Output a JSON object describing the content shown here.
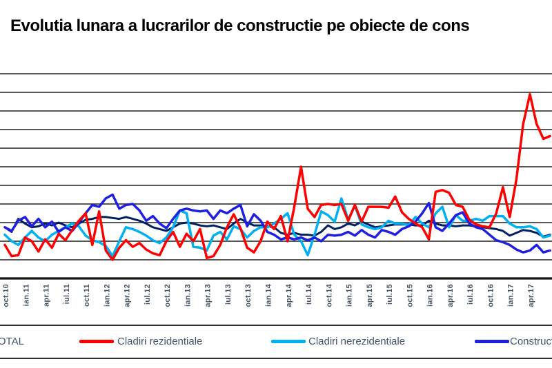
{
  "title": "Evolutia lunara a lucrarilor de constructie pe obiecte de cons",
  "legend": {
    "items": [
      {
        "label": "TOTAL",
        "color": "#002060"
      },
      {
        "label": "Cladiri rezidentiale",
        "color": "#FE0000"
      },
      {
        "label": "Cladiri nerezidentiale",
        "color": "#00B0F0"
      },
      {
        "label": "Constructii ingineresti",
        "color": "#1F1FE0"
      }
    ]
  },
  "chart_data": {
    "type": "line",
    "x_frequency": "monthly",
    "x_start": "oct.10",
    "x_end": "iul.17",
    "x_tick_every": 3,
    "x_tick_labels": [
      "oct.10",
      "ian.11",
      "apr.11",
      "iul.11",
      "oct.11",
      "ian.12",
      "apr.12",
      "iul.12",
      "oct.12",
      "ian.13",
      "apr.13",
      "iul.13",
      "oct.13",
      "ian.14",
      "apr.14",
      "iul.14",
      "oct.14",
      "ian.15",
      "apr.15",
      "iul.15",
      "oct.15",
      "ian.16",
      "apr.16",
      "iul.16",
      "oct.16",
      "ian.17",
      "apr.17"
    ],
    "ylim": [
      40,
      260
    ],
    "y_grid_step": 20,
    "y_tick_labels_visible": false,
    "grid": true,
    "legend_position": "bottom",
    "series": [
      {
        "name": "TOTAL",
        "color": "#002060",
        "values": [
          95,
          90,
          104,
          99,
          95,
          96,
          99,
          97,
          100,
          97,
          95,
          99,
          103,
          104,
          106,
          106,
          105,
          104,
          106,
          104,
          102,
          99,
          95,
          93,
          91,
          95,
          99,
          100,
          99,
          97,
          96,
          97,
          95,
          93,
          99,
          104,
          100,
          97,
          97,
          96,
          95,
          89,
          87,
          89,
          87,
          87,
          86,
          90,
          97,
          93,
          95,
          99,
          97,
          101,
          98,
          95,
          96,
          97,
          98,
          98,
          98,
          97,
          97,
          102,
          99,
          97,
          97,
          96,
          97,
          97,
          96,
          95,
          94,
          93,
          91,
          86,
          89,
          92,
          91,
          89,
          85,
          87
        ]
      },
      {
        "name": "Cladiri rezidentiale",
        "color": "#FE0000",
        "values": [
          76,
          64,
          65,
          84,
          80,
          69,
          82,
          73,
          88,
          81,
          92,
          102,
          110,
          76,
          112,
          70,
          60,
          73,
          81,
          74,
          78,
          71,
          67,
          65,
          80,
          90,
          74,
          88,
          80,
          93,
          62,
          64,
          76,
          95,
          109,
          94,
          73,
          68,
          80,
          101,
          93,
          107,
          80,
          117,
          160,
          115,
          106,
          119,
          120,
          119,
          120,
          102,
          119,
          101,
          117,
          117,
          117,
          116,
          128,
          111,
          104,
          99,
          95,
          82,
          133,
          135,
          132,
          119,
          117,
          103,
          98,
          96,
          95,
          110,
          138,
          106,
          147,
          206,
          238,
          206,
          190,
          193
        ]
      },
      {
        "name": "Cladiri nerezidentiale",
        "color": "#00B0F0",
        "values": [
          87,
          80,
          76,
          84,
          91,
          84,
          80,
          87,
          91,
          95,
          99,
          96,
          86,
          81,
          79,
          75,
          64,
          80,
          95,
          93,
          90,
          86,
          81,
          78,
          84,
          95,
          113,
          110,
          74,
          73,
          70,
          86,
          90,
          82,
          96,
          93,
          84,
          91,
          95,
          95,
          99,
          104,
          110,
          87,
          80,
          65,
          87,
          112,
          108,
          101,
          126,
          103,
          118,
          98,
          95,
          93,
          95,
          102,
          99,
          99,
          97,
          106,
          99,
          95,
          110,
          117,
          95,
          108,
          102,
          102,
          104,
          102,
          107,
          107,
          107,
          99,
          95,
          95,
          96,
          93,
          84,
          86
        ]
      },
      {
        "name": "Constructii ingineresti",
        "color": "#1F1FE0",
        "values": [
          95,
          91,
          102,
          106,
          96,
          104,
          95,
          101,
          90,
          95,
          91,
          100,
          110,
          119,
          117,
          126,
          130,
          115,
          119,
          120,
          113,
          102,
          107,
          99,
          94,
          104,
          113,
          115,
          113,
          112,
          113,
          104,
          113,
          110,
          115,
          119,
          96,
          109,
          102,
          90,
          87,
          82,
          84,
          82,
          84,
          81,
          84,
          80,
          87,
          86,
          87,
          90,
          86,
          92,
          87,
          84,
          92,
          90,
          87,
          93,
          96,
          101,
          110,
          121,
          95,
          91,
          99,
          108,
          111,
          99,
          95,
          93,
          87,
          81,
          79,
          76,
          71,
          68,
          70,
          76,
          68,
          70
        ]
      }
    ]
  }
}
